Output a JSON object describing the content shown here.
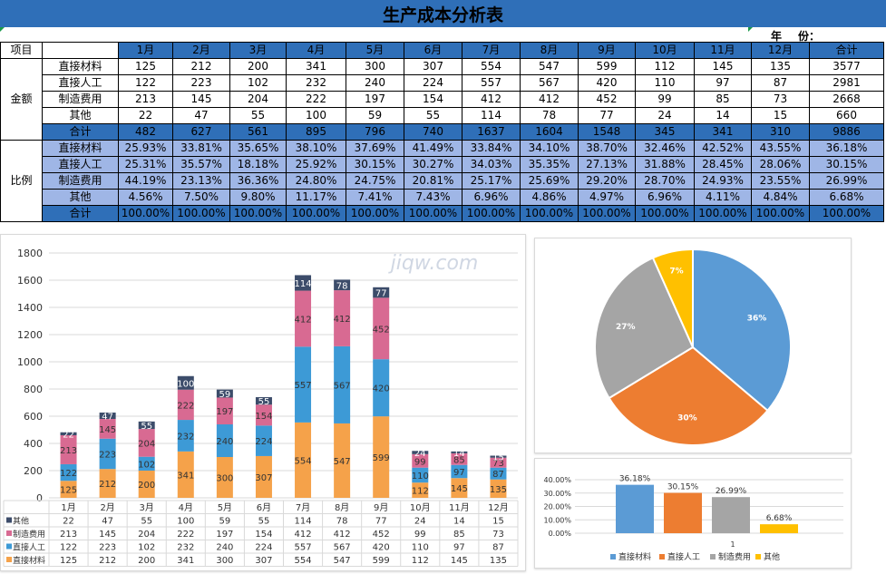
{
  "title": "生产成本分析表",
  "year_label": "年",
  "year_field": "份：",
  "table": {
    "corner": "项目",
    "total_header": "合计",
    "months": [
      "1月",
      "2月",
      "3月",
      "4月",
      "5月",
      "6月",
      "7月",
      "8月",
      "9月",
      "10月",
      "11月",
      "12月"
    ],
    "amount_group": "金额",
    "ratio_group": "比例",
    "amount_rows": [
      {
        "label": "直接材料",
        "values": [
          "125",
          "212",
          "200",
          "341",
          "300",
          "307",
          "554",
          "547",
          "599",
          "112",
          "145",
          "135"
        ],
        "total": "3577"
      },
      {
        "label": "直接人工",
        "values": [
          "122",
          "223",
          "102",
          "232",
          "240",
          "224",
          "557",
          "567",
          "420",
          "110",
          "97",
          "87"
        ],
        "total": "2981"
      },
      {
        "label": "制造费用",
        "values": [
          "213",
          "145",
          "204",
          "222",
          "197",
          "154",
          "412",
          "412",
          "452",
          "99",
          "85",
          "73"
        ],
        "total": "2668"
      },
      {
        "label": "其他",
        "values": [
          "22",
          "47",
          "55",
          "100",
          "59",
          "55",
          "114",
          "78",
          "77",
          "24",
          "14",
          "15"
        ],
        "total": "660"
      },
      {
        "label": "合计",
        "values": [
          "482",
          "627",
          "561",
          "895",
          "796",
          "740",
          "1637",
          "1604",
          "1548",
          "345",
          "341",
          "310"
        ],
        "total": "9886"
      }
    ],
    "ratio_rows": [
      {
        "label": "直接材料",
        "values": [
          "25.93%",
          "33.81%",
          "35.65%",
          "38.10%",
          "37.69%",
          "41.49%",
          "33.84%",
          "34.10%",
          "38.70%",
          "32.46%",
          "42.52%",
          "43.55%"
        ],
        "total": "36.18%"
      },
      {
        "label": "直接人工",
        "values": [
          "25.31%",
          "35.57%",
          "18.18%",
          "25.92%",
          "30.15%",
          "30.27%",
          "34.03%",
          "35.35%",
          "27.13%",
          "31.88%",
          "28.45%",
          "28.06%"
        ],
        "total": "30.15%"
      },
      {
        "label": "制造费用",
        "values": [
          "44.19%",
          "23.13%",
          "36.36%",
          "24.80%",
          "24.75%",
          "20.81%",
          "25.17%",
          "25.69%",
          "29.20%",
          "28.70%",
          "24.93%",
          "23.55%"
        ],
        "total": "26.99%"
      },
      {
        "label": "其他",
        "values": [
          "4.56%",
          "7.50%",
          "9.80%",
          "11.17%",
          "7.41%",
          "7.43%",
          "6.96%",
          "4.86%",
          "4.97%",
          "6.96%",
          "4.11%",
          "4.84%"
        ],
        "total": "6.68%"
      },
      {
        "label": "合计",
        "values": [
          "100.00%",
          "100.00%",
          "100.00%",
          "100.00%",
          "100.00%",
          "100.00%",
          "100.00%",
          "100.00%",
          "100.00%",
          "100.00%",
          "100.00%",
          "100.00%"
        ],
        "total": "100.00%"
      }
    ]
  },
  "watermark": "jiqw.com",
  "colors": {
    "header_blue": "#2f6fb8",
    "ratio_fill": "#9fb6e6",
    "material": "#f5a24a",
    "labor": "#3d9ad6",
    "manufacturing": "#d86a92",
    "other": "#3c4c6a",
    "pie_material": "#5b9bd5",
    "pie_labor": "#ed7d31",
    "pie_manufacturing": "#a5a5a5",
    "pie_other": "#ffc000"
  },
  "chart_data": [
    {
      "type": "bar",
      "stacked": true,
      "categories": [
        "1月",
        "2月",
        "3月",
        "4月",
        "5月",
        "6月",
        "7月",
        "8月",
        "9月",
        "10月",
        "11月",
        "12月"
      ],
      "series": [
        {
          "name": "直接材料",
          "values": [
            125,
            212,
            200,
            341,
            300,
            307,
            554,
            547,
            599,
            112,
            145,
            135
          ]
        },
        {
          "name": "直接人工",
          "values": [
            122,
            223,
            102,
            232,
            240,
            224,
            557,
            567,
            420,
            110,
            97,
            87
          ]
        },
        {
          "name": "制造费用",
          "values": [
            213,
            145,
            204,
            222,
            197,
            154,
            412,
            412,
            452,
            99,
            85,
            73
          ]
        },
        {
          "name": "其他",
          "values": [
            22,
            47,
            55,
            100,
            59,
            55,
            114,
            78,
            77,
            24,
            14,
            15
          ]
        }
      ],
      "yticks": [
        0,
        200,
        400,
        600,
        800,
        1000,
        1200,
        1400,
        1600,
        1800
      ],
      "ylim": [
        0,
        1800
      ],
      "legend": "data-table"
    },
    {
      "type": "pie",
      "labels": [
        "直接材料",
        "直接人工",
        "制造费用",
        "其他"
      ],
      "values": [
        36.18,
        30.15,
        26.99,
        6.68
      ],
      "data_labels": [
        "36%",
        "30%",
        "27%",
        "7%"
      ]
    },
    {
      "type": "bar",
      "categories": [
        "1"
      ],
      "series": [
        {
          "name": "直接材料",
          "values": [
            36.18
          ]
        },
        {
          "name": "直接人工",
          "values": [
            30.15
          ]
        },
        {
          "name": "制造费用",
          "values": [
            26.99
          ]
        },
        {
          "name": "其他",
          "values": [
            6.68
          ]
        }
      ],
      "data_labels": [
        "36.18%",
        "30.15%",
        "26.99%",
        "6.68%"
      ],
      "yticks": [
        "0.00%",
        "10.00%",
        "20.00%",
        "30.00%",
        "40.00%"
      ],
      "ylim": [
        0,
        40
      ],
      "legend": "bottom"
    }
  ]
}
